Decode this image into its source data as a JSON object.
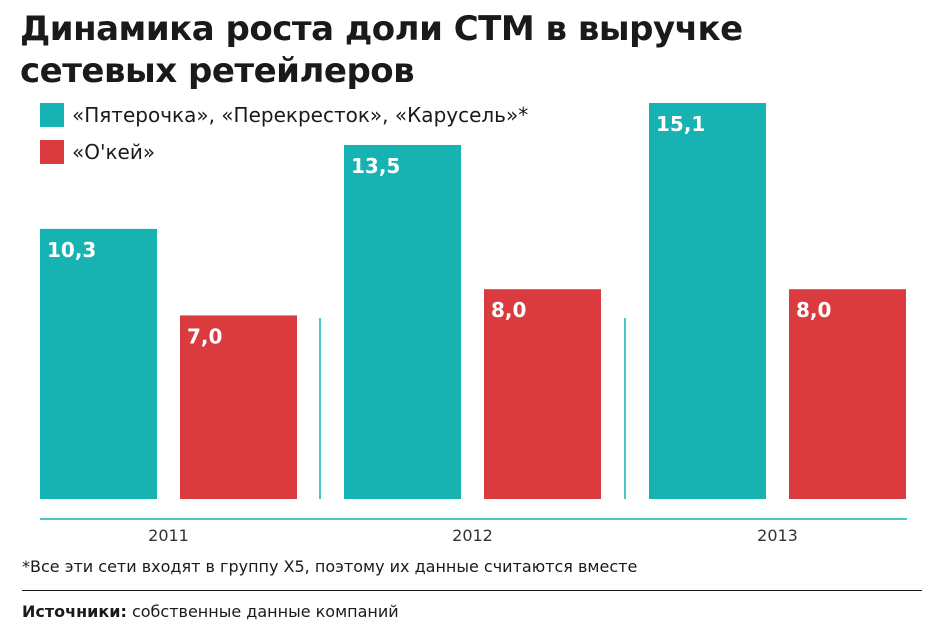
{
  "chart_data": {
    "type": "bar",
    "title_line1": "Динамика роста доли СТМ в выручке",
    "title_line2": "сетевых ретейлеров",
    "categories": [
      "2011",
      "2012",
      "2013"
    ],
    "series": [
      {
        "name": "«Пятерочка», «Перекресток», «Карусель»*",
        "color": "#17b2b2",
        "values": [
          10.3,
          13.5,
          15.1
        ],
        "labels": [
          "10,3",
          "13,5",
          "15,1"
        ]
      },
      {
        "name": "«О'кей»",
        "color": "#d93b3e",
        "values": [
          7.0,
          8.0,
          8.0
        ],
        "labels": [
          "7,0",
          "8,0",
          "8,0"
        ]
      }
    ],
    "ylim": [
      0,
      15.1
    ],
    "grid": false,
    "legend_position": "top-left",
    "axis_color": "#17b2b2"
  },
  "footnote": "*Все эти сети входят в группу Х5, поэтому их данные считаются вместе",
  "source": {
    "label": "Источники:",
    "text": " собственные данные компаний"
  }
}
